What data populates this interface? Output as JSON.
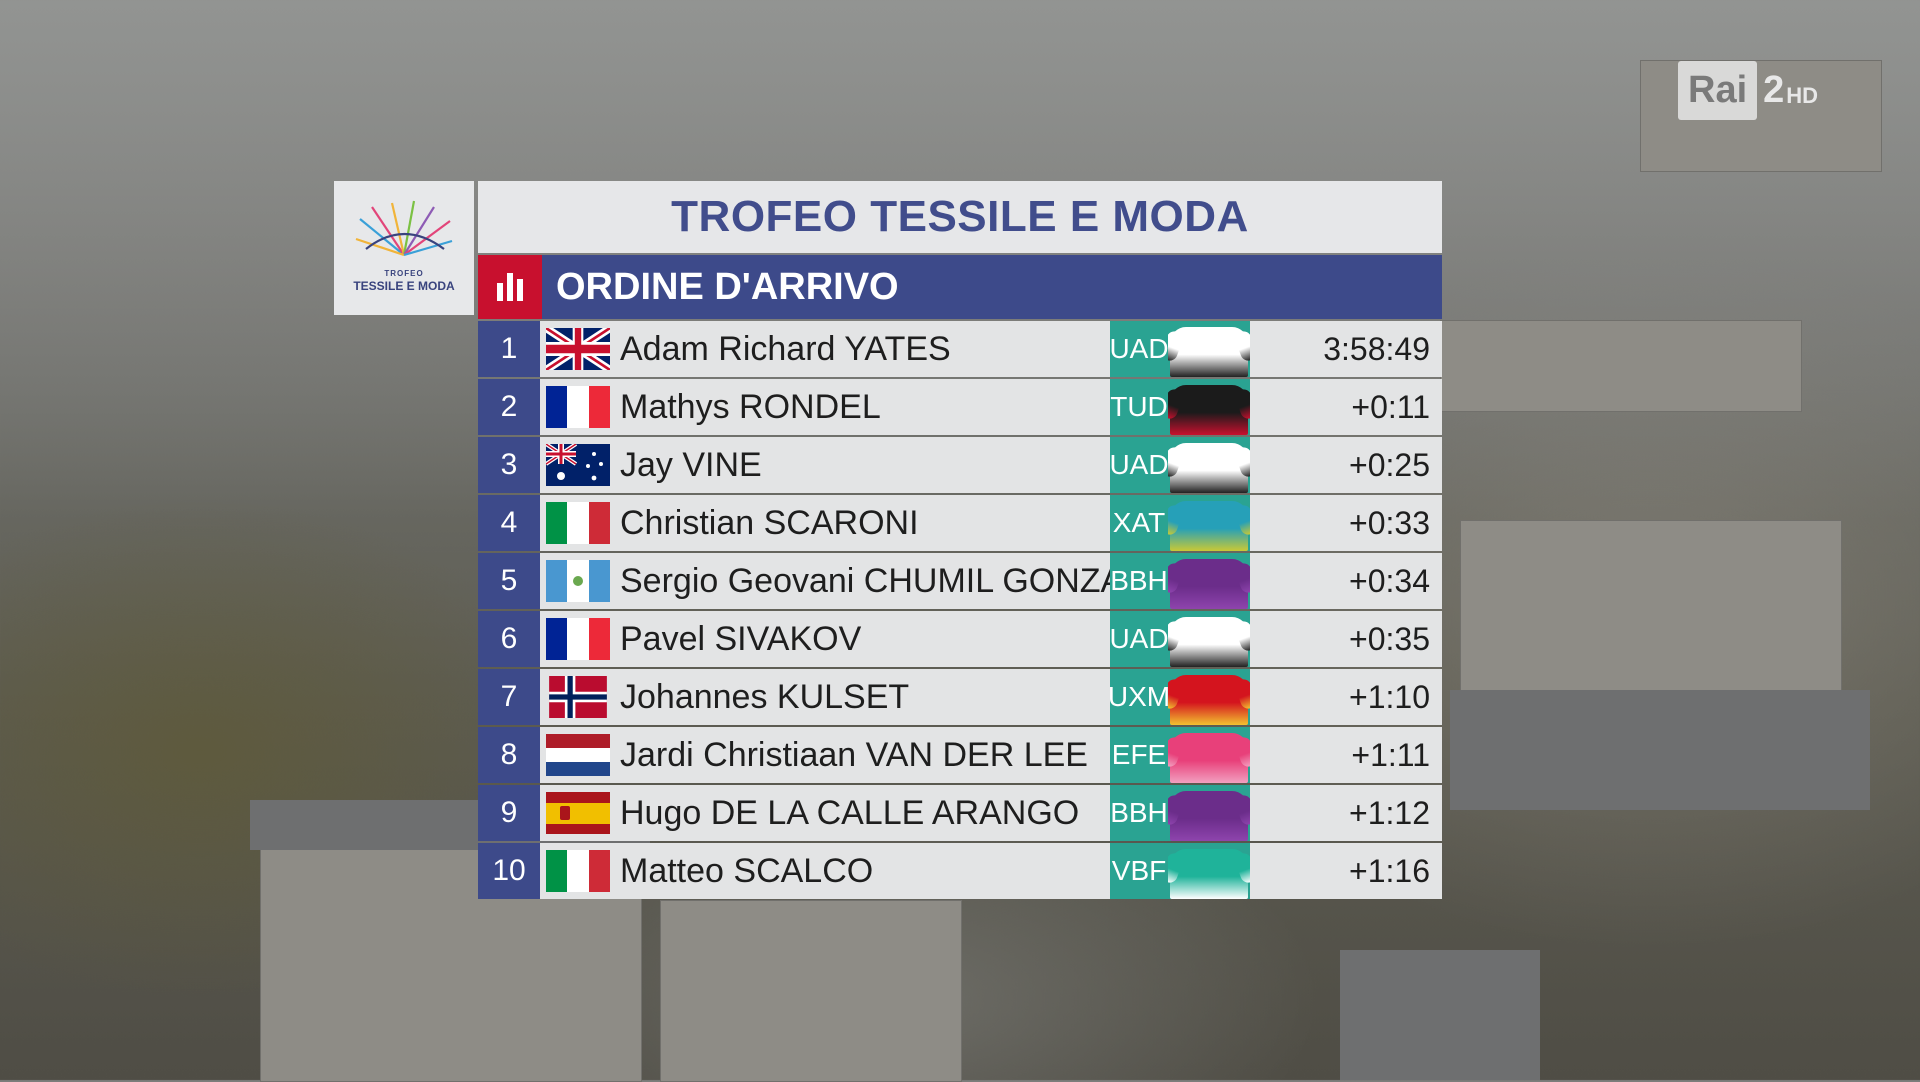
{
  "channel": {
    "brand": "Rai",
    "number": "2",
    "suffix": "HD"
  },
  "race_logo": {
    "line1": "TROFEO",
    "line2": "TESSILE E MODA"
  },
  "board": {
    "title": "TROFEO TESSILE E MODA",
    "header": "ORDINE D'ARRIVO",
    "header_icon": "bar-chart-icon"
  },
  "results": [
    {
      "pos": "1",
      "name": "Adam Richard YATES",
      "flag": "gb",
      "team": "UAD",
      "jersey_colors": [
        "#ffffff",
        "#222222"
      ],
      "time": "3:58:49"
    },
    {
      "pos": "2",
      "name": "Mathys RONDEL",
      "flag": "fr",
      "team": "TUD",
      "jersey_colors": [
        "#1b1b1b",
        "#c8102e"
      ],
      "time": "+0:11"
    },
    {
      "pos": "3",
      "name": "Jay VINE",
      "flag": "au",
      "team": "UAD",
      "jersey_colors": [
        "#ffffff",
        "#222222"
      ],
      "time": "+0:25"
    },
    {
      "pos": "4",
      "name": "Christian SCARONI",
      "flag": "it",
      "team": "XAT",
      "jersey_colors": [
        "#26a0b8",
        "#c9c935"
      ],
      "time": "+0:33"
    },
    {
      "pos": "5",
      "name": "Sergio Geovani CHUMIL GONZALEZ",
      "flag": "gt",
      "team": "BBH",
      "jersey_colors": [
        "#6b2d8a",
        "#8e44ad"
      ],
      "time": "+0:34"
    },
    {
      "pos": "6",
      "name": "Pavel SIVAKOV",
      "flag": "fr",
      "team": "UAD",
      "jersey_colors": [
        "#ffffff",
        "#222222"
      ],
      "time": "+0:35"
    },
    {
      "pos": "7",
      "name": "Johannes KULSET",
      "flag": "no",
      "team": "UXM",
      "jersey_colors": [
        "#d4141e",
        "#f2c230"
      ],
      "time": "+1:10"
    },
    {
      "pos": "8",
      "name": "Jardi Christiaan VAN DER LEE",
      "flag": "nl",
      "team": "EFE",
      "jersey_colors": [
        "#e8407a",
        "#f2a0c0"
      ],
      "time": "+1:11"
    },
    {
      "pos": "9",
      "name": "Hugo DE LA CALLE ARANGO",
      "flag": "es",
      "team": "BBH",
      "jersey_colors": [
        "#6b2d8a",
        "#8e44ad"
      ],
      "time": "+1:12"
    },
    {
      "pos": "10",
      "name": "Matteo SCALCO",
      "flag": "it",
      "team": "VBF",
      "jersey_colors": [
        "#1fb39a",
        "#ffffff"
      ],
      "time": "+1:16"
    }
  ]
}
